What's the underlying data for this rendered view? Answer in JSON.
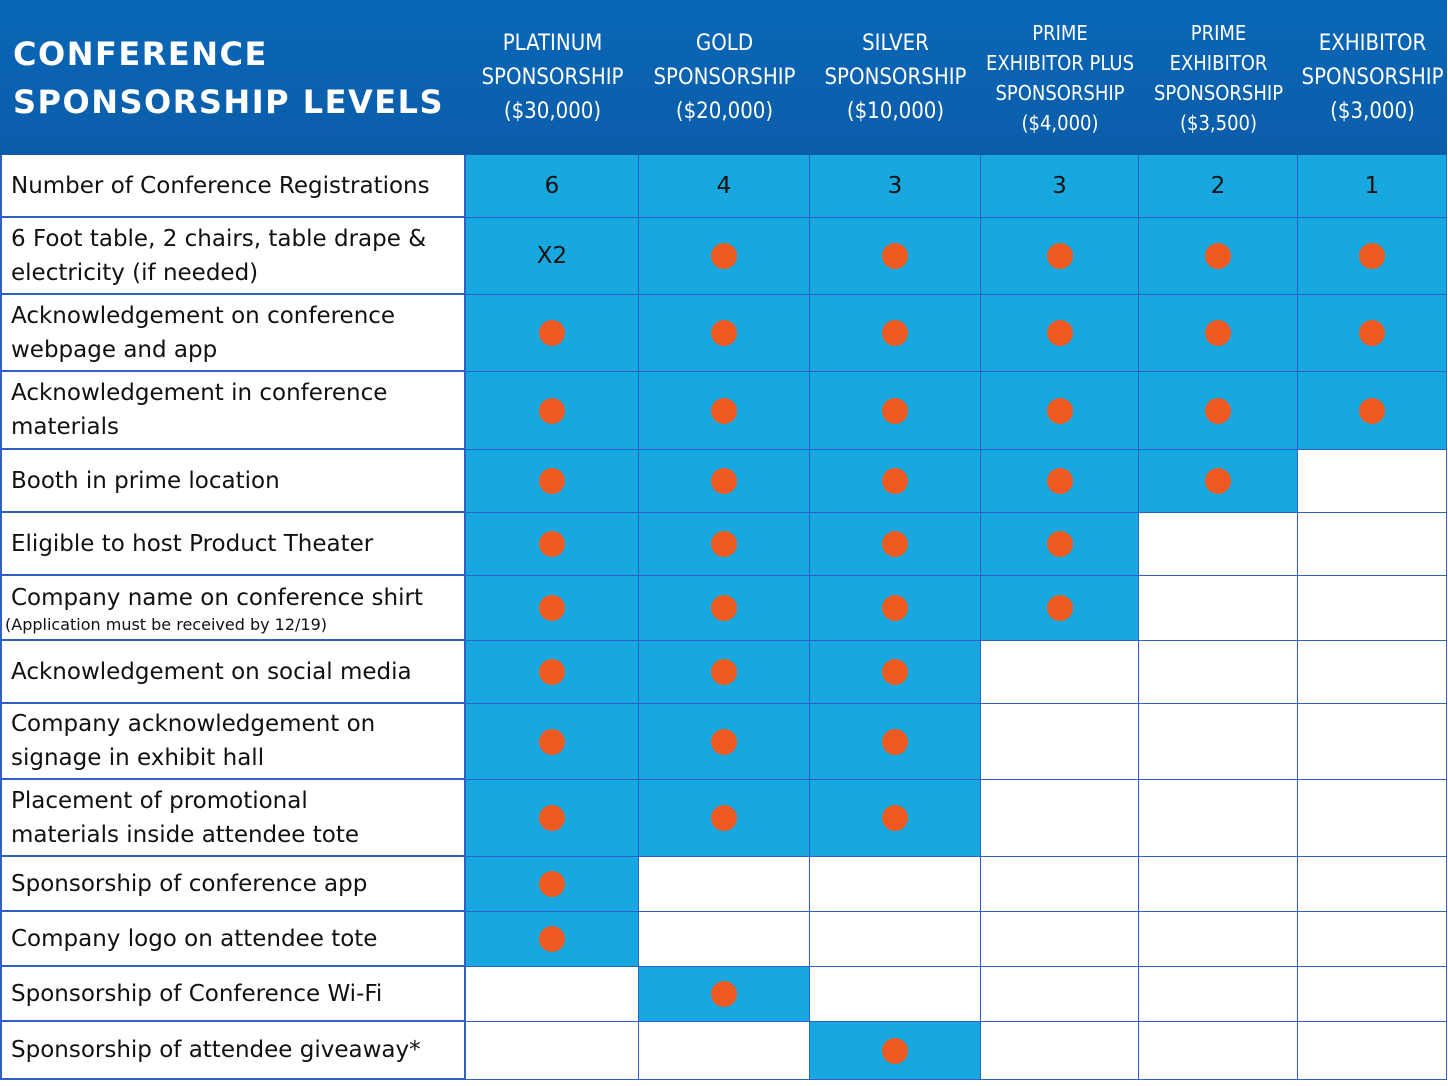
{
  "title": "CONFERENCE\nSPONSORSHIP LEVELS",
  "dot_color": "#ef5a22",
  "tiers": [
    {
      "label": "PLATINUM\nSPONSORSHIP\n($30,000)"
    },
    {
      "label": "GOLD\nSPONSORSHIP\n($20,000)"
    },
    {
      "label": "SILVER\nSPONSORSHIP\n($10,000)"
    },
    {
      "label": "PRIME\nEXHIBITOR PLUS\nSPONSORSHIP\n($4,000)"
    },
    {
      "label": "PRIME\nEXHIBITOR\nSPONSORSHIP\n($3,500)"
    },
    {
      "label": "EXHIBITOR\nSPONSORSHIP\n($3,000)"
    }
  ],
  "rows": [
    {
      "label": "Number of Conference Registrations",
      "note": "",
      "cells": [
        "6",
        "4",
        "3",
        "3",
        "2",
        "1"
      ]
    },
    {
      "label": "6 Foot table, 2 chairs, table drape &\nelectricity (if needed)",
      "note": "",
      "cells": [
        "X2",
        "dot",
        "dot",
        "dot",
        "dot",
        "dot"
      ]
    },
    {
      "label": "Acknowledgement on conference\nwebpage and app",
      "note": "",
      "cells": [
        "dot",
        "dot",
        "dot",
        "dot",
        "dot",
        "dot"
      ]
    },
    {
      "label": "Acknowledgement in conference\nmaterials",
      "note": "",
      "cells": [
        "dot",
        "dot",
        "dot",
        "dot",
        "dot",
        "dot"
      ]
    },
    {
      "label": "Booth in prime location",
      "note": "",
      "cells": [
        "dot",
        "dot",
        "dot",
        "dot",
        "dot",
        ""
      ]
    },
    {
      "label": "Eligible to host Product Theater",
      "note": "",
      "cells": [
        "dot",
        "dot",
        "dot",
        "dot",
        "",
        ""
      ]
    },
    {
      "label": "Company name on conference shirt",
      "note": "(Application must be received by 12/19)",
      "cells": [
        "dot",
        "dot",
        "dot",
        "dot",
        "",
        ""
      ]
    },
    {
      "label": "Acknowledgement on social media",
      "note": "",
      "cells": [
        "dot",
        "dot",
        "dot",
        "",
        "",
        ""
      ]
    },
    {
      "label": "Company acknowledgement on\nsignage in exhibit hall",
      "note": "",
      "cells": [
        "dot",
        "dot",
        "dot",
        "",
        "",
        ""
      ]
    },
    {
      "label": "Placement of promotional\nmaterials inside attendee tote",
      "note": "",
      "cells": [
        "dot",
        "dot",
        "dot",
        "",
        "",
        ""
      ]
    },
    {
      "label": "Sponsorship of conference app",
      "note": "",
      "cells": [
        "dot",
        "",
        "",
        "",
        "",
        ""
      ]
    },
    {
      "label": "Company logo on attendee tote",
      "note": "",
      "cells": [
        "dot",
        "",
        "",
        "",
        "",
        ""
      ]
    },
    {
      "label": "Sponsorship of Conference Wi-Fi",
      "note": "",
      "cells": [
        "",
        "dot",
        "",
        "",
        "",
        ""
      ]
    },
    {
      "label": "Sponsorship of attendee giveaway*",
      "note": "",
      "cells": [
        "",
        "",
        "dot",
        "",
        "",
        ""
      ]
    }
  ]
}
